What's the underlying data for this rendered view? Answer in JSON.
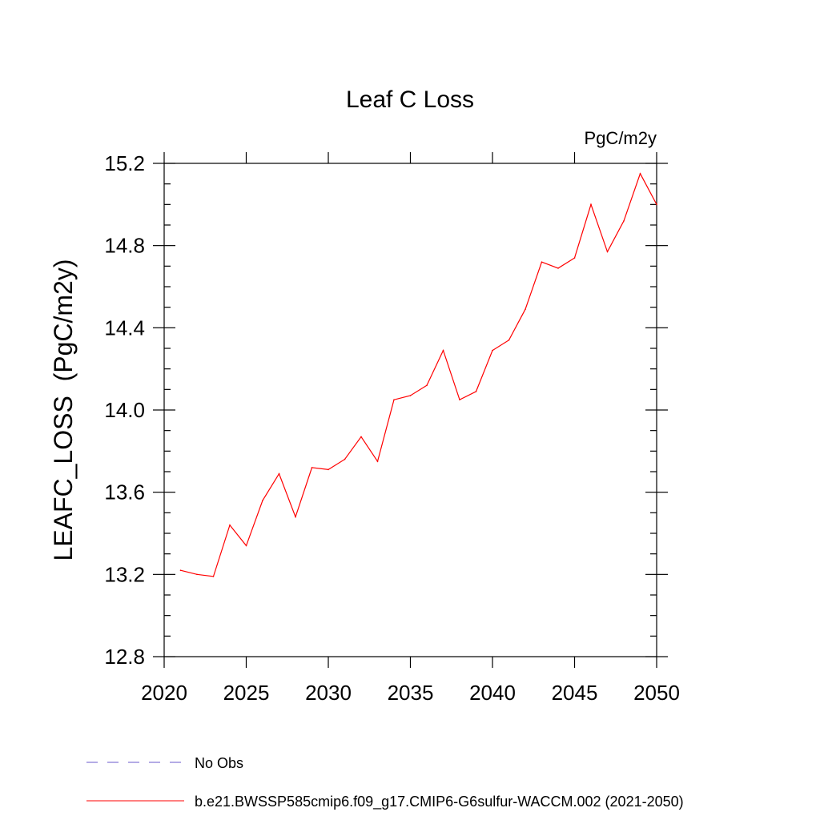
{
  "chart_data": {
    "type": "line",
    "title": "Leaf C Loss",
    "units_label": "PgC/m2y",
    "ylabel": "LEAFC_LOSS  (PgC/m2y)",
    "xlabel": "",
    "xlim": [
      2020,
      2050
    ],
    "ylim": [
      12.8,
      15.2
    ],
    "x_ticks": [
      2020,
      2025,
      2030,
      2035,
      2040,
      2045,
      2050
    ],
    "x_tick_labels": [
      "2020",
      "2025",
      "2030",
      "2035",
      "2040",
      "2045",
      "2050"
    ],
    "y_ticks": [
      12.8,
      13.2,
      13.6,
      14.0,
      14.4,
      14.8,
      15.2
    ],
    "y_tick_labels": [
      "12.8",
      "13.2",
      "13.6",
      "14.0",
      "14.4",
      "14.8",
      "15.2"
    ],
    "grid": false,
    "legend_position": "bottom-left",
    "legend": [
      {
        "label": "No Obs",
        "style": "dashed",
        "color": "#6a5acd"
      },
      {
        "label": "b.e21.BWSSP585cmip6.f09_g17.CMIP6-G6sulfur-WACCM.002 (2021-2050)",
        "style": "solid",
        "color": "#ff0000"
      }
    ],
    "series": [
      {
        "name": "b.e21.BWSSP585cmip6.f09_g17.CMIP6-G6sulfur-WACCM.002 (2021-2050)",
        "color": "#ff0000",
        "x": [
          2021,
          2022,
          2023,
          2024,
          2025,
          2026,
          2027,
          2028,
          2029,
          2030,
          2031,
          2032,
          2033,
          2034,
          2035,
          2036,
          2037,
          2038,
          2039,
          2040,
          2041,
          2042,
          2043,
          2044,
          2045,
          2046,
          2047,
          2048,
          2049,
          2050
        ],
        "y": [
          13.22,
          13.2,
          13.19,
          13.44,
          13.34,
          13.56,
          13.69,
          13.48,
          13.72,
          13.71,
          13.76,
          13.87,
          13.75,
          14.05,
          14.07,
          14.12,
          14.29,
          14.05,
          14.09,
          14.29,
          14.34,
          14.49,
          14.72,
          14.69,
          14.74,
          15.0,
          14.77,
          14.92,
          15.15,
          15.0
        ]
      }
    ]
  }
}
